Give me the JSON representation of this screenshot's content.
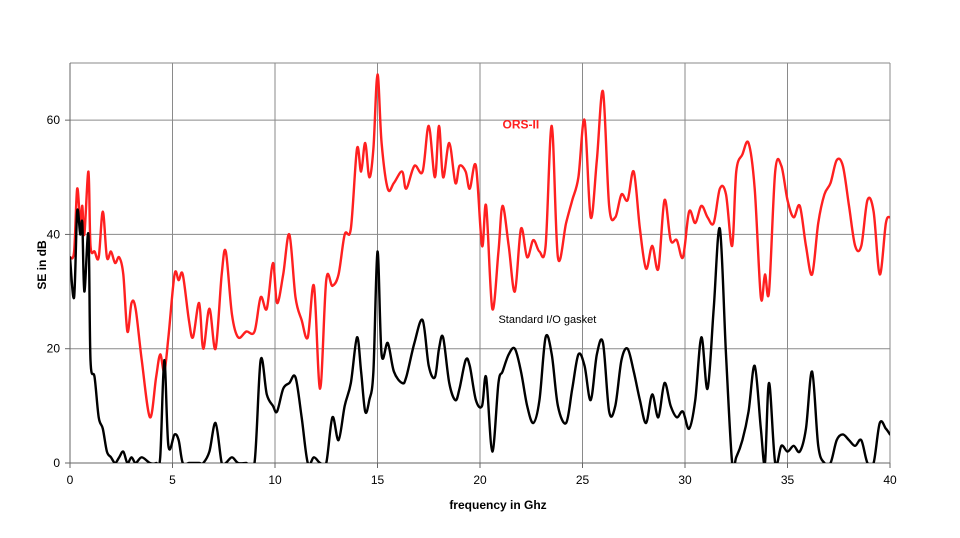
{
  "chart_data": {
    "type": "line",
    "title": "",
    "xlabel": "frequency in Ghz",
    "ylabel": "SE in dB",
    "xlim": [
      0,
      40
    ],
    "ylim": [
      0,
      70
    ],
    "x_ticks": [
      0,
      5,
      10,
      15,
      20,
      25,
      30,
      35,
      40
    ],
    "y_ticks": [
      0,
      20,
      40,
      60
    ],
    "grid": true,
    "legend": "inline labels",
    "series": [
      {
        "name": "ORS-II",
        "color": "#ff2020",
        "points": [
          [
            0,
            36
          ],
          [
            0.2,
            37
          ],
          [
            0.35,
            48
          ],
          [
            0.5,
            42
          ],
          [
            0.6,
            45
          ],
          [
            0.7,
            40
          ],
          [
            0.9,
            51
          ],
          [
            1.0,
            38
          ],
          [
            1.2,
            37
          ],
          [
            1.4,
            36
          ],
          [
            1.6,
            44
          ],
          [
            1.8,
            36
          ],
          [
            2.0,
            37
          ],
          [
            2.2,
            35
          ],
          [
            2.4,
            36
          ],
          [
            2.6,
            33
          ],
          [
            2.8,
            23
          ],
          [
            3.0,
            28
          ],
          [
            3.2,
            27
          ],
          [
            3.5,
            18
          ],
          [
            3.9,
            8
          ],
          [
            4.2,
            15
          ],
          [
            4.4,
            19
          ],
          [
            4.6,
            16
          ],
          [
            4.8,
            22
          ],
          [
            5.1,
            33
          ],
          [
            5.3,
            32
          ],
          [
            5.5,
            33
          ],
          [
            5.8,
            25
          ],
          [
            6.0,
            22
          ],
          [
            6.3,
            28
          ],
          [
            6.5,
            20
          ],
          [
            6.8,
            27
          ],
          [
            7.1,
            20
          ],
          [
            7.4,
            33
          ],
          [
            7.6,
            37
          ],
          [
            7.9,
            26
          ],
          [
            8.2,
            22
          ],
          [
            8.6,
            23
          ],
          [
            9.0,
            23
          ],
          [
            9.3,
            29
          ],
          [
            9.6,
            27
          ],
          [
            9.9,
            35
          ],
          [
            10.1,
            28
          ],
          [
            10.4,
            33
          ],
          [
            10.7,
            40
          ],
          [
            11.0,
            29
          ],
          [
            11.3,
            25
          ],
          [
            11.6,
            22
          ],
          [
            11.9,
            31
          ],
          [
            12.2,
            13
          ],
          [
            12.5,
            32
          ],
          [
            12.8,
            31
          ],
          [
            13.1,
            33
          ],
          [
            13.4,
            40
          ],
          [
            13.7,
            41
          ],
          [
            14.0,
            55
          ],
          [
            14.2,
            51
          ],
          [
            14.4,
            56
          ],
          [
            14.6,
            50
          ],
          [
            14.8,
            55
          ],
          [
            15.0,
            68
          ],
          [
            15.2,
            56
          ],
          [
            15.5,
            48
          ],
          [
            15.8,
            49
          ],
          [
            16.2,
            51
          ],
          [
            16.4,
            48
          ],
          [
            16.8,
            52
          ],
          [
            17.2,
            51
          ],
          [
            17.5,
            59
          ],
          [
            17.8,
            50
          ],
          [
            18.0,
            59
          ],
          [
            18.2,
            50
          ],
          [
            18.5,
            56
          ],
          [
            18.8,
            49
          ],
          [
            19.0,
            52
          ],
          [
            19.3,
            51
          ],
          [
            19.5,
            48
          ],
          [
            19.8,
            52
          ],
          [
            20.1,
            38
          ],
          [
            20.3,
            45
          ],
          [
            20.6,
            27
          ],
          [
            20.9,
            37
          ],
          [
            21.1,
            45
          ],
          [
            21.4,
            38
          ],
          [
            21.7,
            30
          ],
          [
            22.0,
            41
          ],
          [
            22.3,
            36
          ],
          [
            22.6,
            39
          ],
          [
            22.9,
            37
          ],
          [
            23.2,
            38
          ],
          [
            23.5,
            59
          ],
          [
            23.8,
            36
          ],
          [
            24.2,
            42
          ],
          [
            24.5,
            46
          ],
          [
            24.8,
            50
          ],
          [
            25.1,
            60
          ],
          [
            25.4,
            43
          ],
          [
            25.7,
            53
          ],
          [
            26.0,
            65
          ],
          [
            26.3,
            45
          ],
          [
            26.6,
            43
          ],
          [
            26.9,
            47
          ],
          [
            27.2,
            46
          ],
          [
            27.5,
            51
          ],
          [
            27.8,
            41
          ],
          [
            28.1,
            34
          ],
          [
            28.4,
            38
          ],
          [
            28.7,
            34
          ],
          [
            29.0,
            46
          ],
          [
            29.3,
            39
          ],
          [
            29.6,
            39
          ],
          [
            29.9,
            36
          ],
          [
            30.2,
            44
          ],
          [
            30.5,
            42
          ],
          [
            30.8,
            45
          ],
          [
            31.1,
            43
          ],
          [
            31.4,
            42
          ],
          [
            31.7,
            48
          ],
          [
            32.0,
            47
          ],
          [
            32.3,
            38
          ],
          [
            32.5,
            51
          ],
          [
            32.8,
            54
          ],
          [
            33.1,
            56
          ],
          [
            33.4,
            48
          ],
          [
            33.7,
            29
          ],
          [
            33.9,
            33
          ],
          [
            34.1,
            30
          ],
          [
            34.4,
            51
          ],
          [
            34.7,
            52
          ],
          [
            35.0,
            46
          ],
          [
            35.3,
            43
          ],
          [
            35.6,
            45
          ],
          [
            35.9,
            38
          ],
          [
            36.2,
            33
          ],
          [
            36.5,
            42
          ],
          [
            36.8,
            47
          ],
          [
            37.1,
            49
          ],
          [
            37.4,
            53
          ],
          [
            37.7,
            52
          ],
          [
            38.0,
            45
          ],
          [
            38.3,
            38
          ],
          [
            38.6,
            38
          ],
          [
            38.9,
            46
          ],
          [
            39.2,
            44
          ],
          [
            39.5,
            33
          ],
          [
            39.8,
            42
          ],
          [
            40,
            43
          ]
        ]
      },
      {
        "name": "Standard I/O gasket",
        "color": "#000000",
        "points": [
          [
            0,
            36
          ],
          [
            0.2,
            29
          ],
          [
            0.35,
            44
          ],
          [
            0.5,
            40
          ],
          [
            0.6,
            42
          ],
          [
            0.7,
            30
          ],
          [
            0.9,
            40
          ],
          [
            1.0,
            18
          ],
          [
            1.2,
            15
          ],
          [
            1.4,
            8
          ],
          [
            1.6,
            6
          ],
          [
            1.8,
            2
          ],
          [
            2.0,
            1
          ],
          [
            2.2,
            0
          ],
          [
            2.4,
            1
          ],
          [
            2.6,
            2
          ],
          [
            2.8,
            0
          ],
          [
            3.0,
            1
          ],
          [
            3.2,
            0
          ],
          [
            3.5,
            1
          ],
          [
            3.9,
            0
          ],
          [
            4.2,
            0
          ],
          [
            4.4,
            1
          ],
          [
            4.6,
            18
          ],
          [
            4.8,
            3
          ],
          [
            5.1,
            5
          ],
          [
            5.3,
            4
          ],
          [
            5.5,
            0
          ],
          [
            5.8,
            0
          ],
          [
            6.0,
            0
          ],
          [
            6.3,
            0
          ],
          [
            6.5,
            0
          ],
          [
            6.8,
            2
          ],
          [
            7.1,
            7
          ],
          [
            7.4,
            0
          ],
          [
            7.6,
            0
          ],
          [
            7.9,
            1
          ],
          [
            8.2,
            0
          ],
          [
            8.6,
            0
          ],
          [
            9.0,
            0
          ],
          [
            9.3,
            18
          ],
          [
            9.6,
            12
          ],
          [
            9.9,
            10
          ],
          [
            10.1,
            9
          ],
          [
            10.4,
            13
          ],
          [
            10.7,
            14
          ],
          [
            11.0,
            15
          ],
          [
            11.3,
            8
          ],
          [
            11.6,
            0
          ],
          [
            11.9,
            1
          ],
          [
            12.2,
            0
          ],
          [
            12.5,
            0
          ],
          [
            12.8,
            8
          ],
          [
            13.1,
            4
          ],
          [
            13.4,
            10
          ],
          [
            13.7,
            14
          ],
          [
            14.0,
            22
          ],
          [
            14.2,
            16
          ],
          [
            14.4,
            9
          ],
          [
            14.6,
            11
          ],
          [
            14.8,
            16
          ],
          [
            15.0,
            37
          ],
          [
            15.2,
            19
          ],
          [
            15.5,
            21
          ],
          [
            15.8,
            16
          ],
          [
            16.2,
            14
          ],
          [
            16.4,
            15
          ],
          [
            16.8,
            21
          ],
          [
            17.2,
            25
          ],
          [
            17.5,
            17
          ],
          [
            17.8,
            15
          ],
          [
            18.0,
            20
          ],
          [
            18.2,
            22
          ],
          [
            18.5,
            14
          ],
          [
            18.8,
            11
          ],
          [
            19.0,
            13
          ],
          [
            19.3,
            18
          ],
          [
            19.5,
            17
          ],
          [
            19.8,
            11
          ],
          [
            20.1,
            10
          ],
          [
            20.3,
            15
          ],
          [
            20.6,
            2
          ],
          [
            20.9,
            14
          ],
          [
            21.1,
            16
          ],
          [
            21.4,
            19
          ],
          [
            21.7,
            20
          ],
          [
            22.0,
            16
          ],
          [
            22.3,
            10
          ],
          [
            22.6,
            7
          ],
          [
            22.9,
            11
          ],
          [
            23.2,
            22
          ],
          [
            23.5,
            19
          ],
          [
            23.8,
            10
          ],
          [
            24.2,
            7
          ],
          [
            24.5,
            13
          ],
          [
            24.8,
            19
          ],
          [
            25.1,
            17
          ],
          [
            25.4,
            11
          ],
          [
            25.7,
            19
          ],
          [
            26.0,
            21
          ],
          [
            26.3,
            9
          ],
          [
            26.6,
            10
          ],
          [
            26.9,
            18
          ],
          [
            27.2,
            20
          ],
          [
            27.5,
            16
          ],
          [
            27.8,
            11
          ],
          [
            28.1,
            7
          ],
          [
            28.4,
            12
          ],
          [
            28.7,
            8
          ],
          [
            29.0,
            14
          ],
          [
            29.3,
            10
          ],
          [
            29.6,
            8
          ],
          [
            29.9,
            9
          ],
          [
            30.2,
            6
          ],
          [
            30.5,
            11
          ],
          [
            30.8,
            22
          ],
          [
            31.1,
            13
          ],
          [
            31.4,
            27
          ],
          [
            31.7,
            41
          ],
          [
            32.0,
            19
          ],
          [
            32.3,
            0
          ],
          [
            32.5,
            1
          ],
          [
            32.8,
            4
          ],
          [
            33.1,
            9
          ],
          [
            33.4,
            17
          ],
          [
            33.7,
            6
          ],
          [
            33.9,
            0
          ],
          [
            34.1,
            14
          ],
          [
            34.4,
            0
          ],
          [
            34.7,
            3
          ],
          [
            35.0,
            2
          ],
          [
            35.3,
            3
          ],
          [
            35.6,
            2
          ],
          [
            35.9,
            6
          ],
          [
            36.2,
            16
          ],
          [
            36.5,
            3
          ],
          [
            36.8,
            0
          ],
          [
            37.1,
            0
          ],
          [
            37.4,
            4
          ],
          [
            37.7,
            5
          ],
          [
            38.0,
            4
          ],
          [
            38.3,
            3
          ],
          [
            38.6,
            4
          ],
          [
            38.9,
            0
          ],
          [
            39.2,
            0
          ],
          [
            39.5,
            7
          ],
          [
            39.8,
            6
          ],
          [
            40,
            5
          ]
        ]
      }
    ],
    "annotations": [
      {
        "text": "ORS-II",
        "x": 21.1,
        "y": 58.5,
        "color": "#ff2020"
      },
      {
        "text": "Standard I/O gasket",
        "x": 20.9,
        "y": 24.5,
        "color": "#000000"
      }
    ]
  }
}
